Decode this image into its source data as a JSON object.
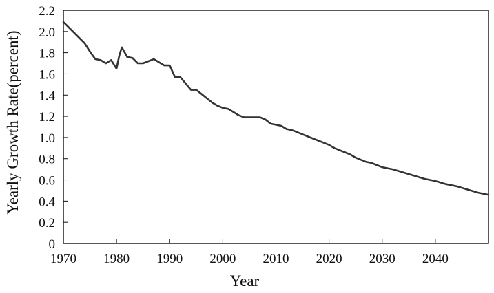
{
  "chart_data": {
    "type": "line",
    "title": "",
    "xlabel": "Year",
    "ylabel": "Yearly Growth Rate(percent)",
    "xlim": [
      1970,
      2050
    ],
    "ylim": [
      0,
      2.2
    ],
    "grid": false,
    "legend": "none",
    "x_ticks": [
      1970,
      1980,
      1990,
      2000,
      2010,
      2020,
      2030,
      2040
    ],
    "x_tick_labels": [
      "1970",
      "1980",
      "1990",
      "2000",
      "2010",
      "2020",
      "2030",
      "2040"
    ],
    "y_ticks": [
      0,
      0.2,
      0.4,
      0.6,
      0.8,
      1.0,
      1.2,
      1.4,
      1.6,
      1.8,
      2.0,
      2.2
    ],
    "y_tick_labels": [
      "0",
      "0.2",
      "0.4",
      "0.6",
      "0.8",
      "1.0",
      "1.2",
      "1.4",
      "1.6",
      "1.8",
      "2.0",
      "2.2"
    ],
    "line_color": "#333333",
    "series": [
      {
        "x": [
          1970,
          1972,
          1974,
          1975,
          1976,
          1977,
          1978,
          1979,
          1980,
          1980.5,
          1981,
          1982,
          1983,
          1984,
          1985,
          1986,
          1987,
          1988,
          1989,
          1990,
          1991,
          1992,
          1993,
          1994,
          1995,
          1996,
          1997,
          1998,
          1999,
          2000,
          2001,
          2002,
          2003,
          2004,
          2005,
          2006,
          2007,
          2008,
          2009,
          2010,
          2011,
          2012,
          2013,
          2014,
          2015,
          2016,
          2017,
          2018,
          2019,
          2020,
          2021,
          2022,
          2023,
          2024,
          2025,
          2026,
          2027,
          2028,
          2029,
          2030,
          2032,
          2034,
          2036,
          2038,
          2040,
          2042,
          2044,
          2046,
          2048,
          2049,
          2050
        ],
        "y": [
          2.09,
          1.99,
          1.89,
          1.81,
          1.74,
          1.73,
          1.7,
          1.73,
          1.65,
          1.77,
          1.85,
          1.76,
          1.75,
          1.7,
          1.7,
          1.72,
          1.74,
          1.71,
          1.68,
          1.68,
          1.57,
          1.57,
          1.51,
          1.45,
          1.45,
          1.41,
          1.37,
          1.33,
          1.3,
          1.28,
          1.27,
          1.24,
          1.21,
          1.19,
          1.19,
          1.19,
          1.19,
          1.17,
          1.13,
          1.12,
          1.11,
          1.08,
          1.07,
          1.05,
          1.03,
          1.01,
          0.99,
          0.97,
          0.95,
          0.93,
          0.9,
          0.88,
          0.86,
          0.84,
          0.81,
          0.79,
          0.77,
          0.76,
          0.74,
          0.72,
          0.7,
          0.67,
          0.64,
          0.61,
          0.59,
          0.56,
          0.54,
          0.51,
          0.48,
          0.47,
          0.46
        ]
      }
    ]
  }
}
